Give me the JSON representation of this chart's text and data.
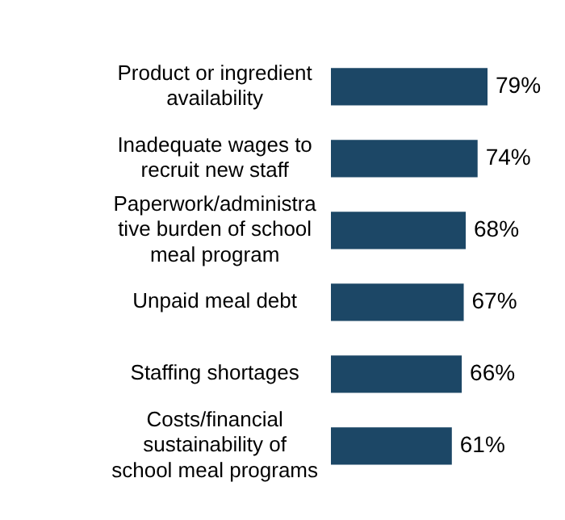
{
  "chart_data": {
    "type": "bar",
    "orientation": "horizontal",
    "categories": [
      "Product or ingredient availability",
      "Inadequate wages to recruit new staff",
      "Paperwork/administrative burden of school meal program",
      "Unpaid meal debt",
      "Staffing shortages",
      "Costs/financial sustainability of school meal programs"
    ],
    "values": [
      79,
      74,
      68,
      67,
      66,
      61
    ],
    "value_labels": [
      "79%",
      "74%",
      "68%",
      "67%",
      "66%",
      "61%"
    ],
    "color": "#1c4766"
  }
}
